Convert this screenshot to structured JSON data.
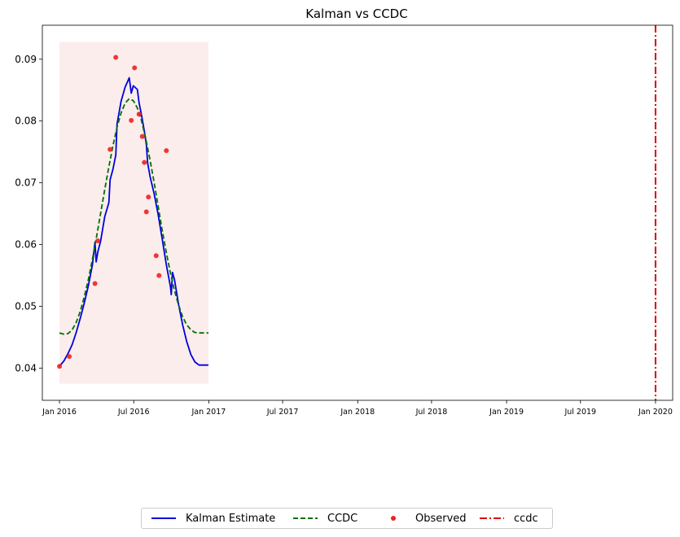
{
  "chart_data": {
    "type": "line",
    "title": "Kalman vs CCDC",
    "xlabel": "",
    "ylabel": "",
    "xlim": [
      "2015-11-20",
      "2020-02-12"
    ],
    "ylim": [
      0.0348,
      0.0955
    ],
    "x_ticks": [
      {
        "date": "2016-01-01",
        "label": "Jan 2016"
      },
      {
        "date": "2016-07-01",
        "label": "Jul 2016"
      },
      {
        "date": "2017-01-01",
        "label": "Jan 2017"
      },
      {
        "date": "2017-07-01",
        "label": "Jul 2017"
      },
      {
        "date": "2018-01-01",
        "label": "Jan 2018"
      },
      {
        "date": "2018-07-01",
        "label": "Jul 2018"
      },
      {
        "date": "2019-01-01",
        "label": "Jan 2019"
      },
      {
        "date": "2019-07-01",
        "label": "Jul 2019"
      },
      {
        "date": "2020-01-01",
        "label": "Jan 2020"
      }
    ],
    "y_ticks": [
      0.04,
      0.05,
      0.06,
      0.07,
      0.08,
      0.09
    ],
    "y_tick_labels": [
      "0.04",
      "0.05",
      "0.06",
      "0.07",
      "0.08",
      "0.09"
    ],
    "shaded_region": {
      "x": [
        "2016-01-01",
        "2016-12-31"
      ],
      "y": [
        0.0375,
        0.0928
      ],
      "color": "#f4d8d2"
    },
    "legend_position": "bottom-center",
    "series": [
      {
        "name": "Kalman Estimate",
        "style": "solid",
        "color": "#0000dd",
        "points": [
          [
            "2016-01-01",
            0.0403
          ],
          [
            "2016-01-12",
            0.0412
          ],
          [
            "2016-01-22",
            0.0424
          ],
          [
            "2016-02-01",
            0.0438
          ],
          [
            "2016-02-11",
            0.0458
          ],
          [
            "2016-02-21",
            0.0481
          ],
          [
            "2016-03-02",
            0.0506
          ],
          [
            "2016-03-12",
            0.0534
          ],
          [
            "2016-03-22",
            0.0568
          ],
          [
            "2016-03-28",
            0.0604
          ],
          [
            "2016-03-31",
            0.0572
          ],
          [
            "2016-04-04",
            0.0588
          ],
          [
            "2016-04-11",
            0.0606
          ],
          [
            "2016-04-21",
            0.0645
          ],
          [
            "2016-05-01",
            0.0668
          ],
          [
            "2016-05-04",
            0.0705
          ],
          [
            "2016-05-11",
            0.0722
          ],
          [
            "2016-05-18",
            0.0745
          ],
          [
            "2016-05-21",
            0.0795
          ],
          [
            "2016-05-31",
            0.0832
          ],
          [
            "2016-06-10",
            0.0855
          ],
          [
            "2016-06-20",
            0.087
          ],
          [
            "2016-06-25",
            0.0845
          ],
          [
            "2016-06-30",
            0.0857
          ],
          [
            "2016-07-10",
            0.0851
          ],
          [
            "2016-07-14",
            0.083
          ],
          [
            "2016-07-20",
            0.081
          ],
          [
            "2016-07-27",
            0.0784
          ],
          [
            "2016-08-01",
            0.0762
          ],
          [
            "2016-08-04",
            0.0732
          ],
          [
            "2016-08-10",
            0.071
          ],
          [
            "2016-08-20",
            0.0682
          ],
          [
            "2016-08-30",
            0.0648
          ],
          [
            "2016-09-09",
            0.0608
          ],
          [
            "2016-09-19",
            0.0567
          ],
          [
            "2016-09-29",
            0.0532
          ],
          [
            "2016-10-01",
            0.0519
          ],
          [
            "2016-10-04",
            0.0555
          ],
          [
            "2016-10-09",
            0.0543
          ],
          [
            "2016-10-19",
            0.0503
          ],
          [
            "2016-10-29",
            0.047
          ],
          [
            "2016-11-08",
            0.0443
          ],
          [
            "2016-11-18",
            0.0422
          ],
          [
            "2016-11-28",
            0.041
          ],
          [
            "2016-12-08",
            0.0405
          ],
          [
            "2016-12-31",
            0.0405
          ]
        ]
      },
      {
        "name": "CCDC",
        "style": "dashed",
        "color": "#007000",
        "points": [
          [
            "2016-01-01",
            0.0457
          ],
          [
            "2016-01-12",
            0.0455
          ],
          [
            "2016-01-22",
            0.0456
          ],
          [
            "2016-02-01",
            0.0462
          ],
          [
            "2016-02-11",
            0.0474
          ],
          [
            "2016-02-21",
            0.0492
          ],
          [
            "2016-03-02",
            0.0516
          ],
          [
            "2016-03-12",
            0.0544
          ],
          [
            "2016-03-22",
            0.0577
          ],
          [
            "2016-04-01",
            0.0613
          ],
          [
            "2016-04-11",
            0.0651
          ],
          [
            "2016-04-21",
            0.0689
          ],
          [
            "2016-05-01",
            0.0726
          ],
          [
            "2016-05-11",
            0.076
          ],
          [
            "2016-05-21",
            0.079
          ],
          [
            "2016-05-31",
            0.0813
          ],
          [
            "2016-06-10",
            0.0829
          ],
          [
            "2016-06-20",
            0.0836
          ],
          [
            "2016-06-30",
            0.0833
          ],
          [
            "2016-07-10",
            0.0821
          ],
          [
            "2016-07-20",
            0.0801
          ],
          [
            "2016-07-30",
            0.0773
          ],
          [
            "2016-08-09",
            0.074
          ],
          [
            "2016-08-19",
            0.0704
          ],
          [
            "2016-08-29",
            0.0665
          ],
          [
            "2016-09-08",
            0.0626
          ],
          [
            "2016-09-18",
            0.059
          ],
          [
            "2016-09-28",
            0.0557
          ],
          [
            "2016-10-08",
            0.0528
          ],
          [
            "2016-10-18",
            0.0504
          ],
          [
            "2016-10-28",
            0.0485
          ],
          [
            "2016-11-07",
            0.0471
          ],
          [
            "2016-11-17",
            0.0463
          ],
          [
            "2016-11-27",
            0.0458
          ],
          [
            "2016-12-07",
            0.0457
          ],
          [
            "2016-12-31",
            0.0457
          ]
        ]
      },
      {
        "name": "Observed",
        "style": "scatter",
        "color": "#ee2222",
        "points": [
          [
            "2016-01-01",
            0.0403
          ],
          [
            "2016-01-25",
            0.0419
          ],
          [
            "2016-03-28",
            0.0537
          ],
          [
            "2016-04-04",
            0.0606
          ],
          [
            "2016-05-04",
            0.0754
          ],
          [
            "2016-05-18",
            0.0903
          ],
          [
            "2016-06-25",
            0.0801
          ],
          [
            "2016-07-03",
            0.0886
          ],
          [
            "2016-07-14",
            0.0811
          ],
          [
            "2016-07-22",
            0.0775
          ],
          [
            "2016-07-27",
            0.0733
          ],
          [
            "2016-08-01",
            0.0653
          ],
          [
            "2016-08-06",
            0.0677
          ],
          [
            "2016-08-25",
            0.0582
          ],
          [
            "2016-09-01",
            0.055
          ],
          [
            "2016-09-19",
            0.0752
          ]
        ]
      }
    ],
    "vlines": [
      {
        "name": "ccdc",
        "x": "2020-01-01",
        "style": "dashdot",
        "color": "#dd0000"
      }
    ]
  },
  "legend": [
    {
      "label": "Kalman Estimate",
      "kind": "solid",
      "color": "#0000dd"
    },
    {
      "label": "CCDC",
      "kind": "dashed",
      "color": "#007000"
    },
    {
      "label": "Observed",
      "kind": "dot",
      "color": "#ee2222"
    },
    {
      "label": "ccdc",
      "kind": "dashdot",
      "color": "#dd0000"
    }
  ]
}
